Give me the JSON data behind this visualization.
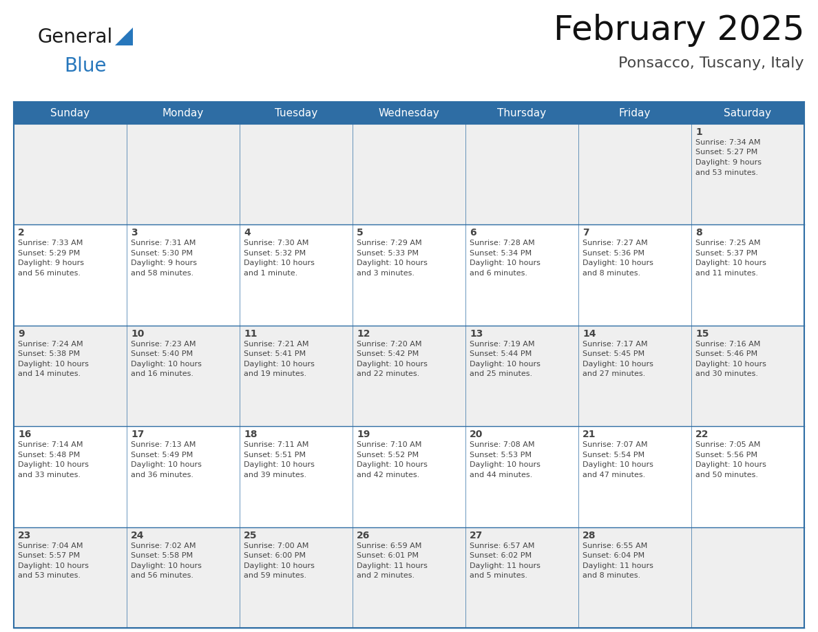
{
  "title": "February 2025",
  "subtitle": "Ponsacco, Tuscany, Italy",
  "days_of_week": [
    "Sunday",
    "Monday",
    "Tuesday",
    "Wednesday",
    "Thursday",
    "Friday",
    "Saturday"
  ],
  "header_bg": "#2E6DA4",
  "header_fg": "#FFFFFF",
  "cell_bg_odd": "#EFEFEF",
  "cell_bg_even": "#FFFFFF",
  "border_color": "#2E6DA4",
  "text_color": "#444444",
  "logo_general_color": "#1a1a1a",
  "logo_blue_color": "#2777BC",
  "calendar_data": [
    [
      {
        "day": null,
        "info": null
      },
      {
        "day": null,
        "info": null
      },
      {
        "day": null,
        "info": null
      },
      {
        "day": null,
        "info": null
      },
      {
        "day": null,
        "info": null
      },
      {
        "day": null,
        "info": null
      },
      {
        "day": 1,
        "info": "Sunrise: 7:34 AM\nSunset: 5:27 PM\nDaylight: 9 hours\nand 53 minutes."
      }
    ],
    [
      {
        "day": 2,
        "info": "Sunrise: 7:33 AM\nSunset: 5:29 PM\nDaylight: 9 hours\nand 56 minutes."
      },
      {
        "day": 3,
        "info": "Sunrise: 7:31 AM\nSunset: 5:30 PM\nDaylight: 9 hours\nand 58 minutes."
      },
      {
        "day": 4,
        "info": "Sunrise: 7:30 AM\nSunset: 5:32 PM\nDaylight: 10 hours\nand 1 minute."
      },
      {
        "day": 5,
        "info": "Sunrise: 7:29 AM\nSunset: 5:33 PM\nDaylight: 10 hours\nand 3 minutes."
      },
      {
        "day": 6,
        "info": "Sunrise: 7:28 AM\nSunset: 5:34 PM\nDaylight: 10 hours\nand 6 minutes."
      },
      {
        "day": 7,
        "info": "Sunrise: 7:27 AM\nSunset: 5:36 PM\nDaylight: 10 hours\nand 8 minutes."
      },
      {
        "day": 8,
        "info": "Sunrise: 7:25 AM\nSunset: 5:37 PM\nDaylight: 10 hours\nand 11 minutes."
      }
    ],
    [
      {
        "day": 9,
        "info": "Sunrise: 7:24 AM\nSunset: 5:38 PM\nDaylight: 10 hours\nand 14 minutes."
      },
      {
        "day": 10,
        "info": "Sunrise: 7:23 AM\nSunset: 5:40 PM\nDaylight: 10 hours\nand 16 minutes."
      },
      {
        "day": 11,
        "info": "Sunrise: 7:21 AM\nSunset: 5:41 PM\nDaylight: 10 hours\nand 19 minutes."
      },
      {
        "day": 12,
        "info": "Sunrise: 7:20 AM\nSunset: 5:42 PM\nDaylight: 10 hours\nand 22 minutes."
      },
      {
        "day": 13,
        "info": "Sunrise: 7:19 AM\nSunset: 5:44 PM\nDaylight: 10 hours\nand 25 minutes."
      },
      {
        "day": 14,
        "info": "Sunrise: 7:17 AM\nSunset: 5:45 PM\nDaylight: 10 hours\nand 27 minutes."
      },
      {
        "day": 15,
        "info": "Sunrise: 7:16 AM\nSunset: 5:46 PM\nDaylight: 10 hours\nand 30 minutes."
      }
    ],
    [
      {
        "day": 16,
        "info": "Sunrise: 7:14 AM\nSunset: 5:48 PM\nDaylight: 10 hours\nand 33 minutes."
      },
      {
        "day": 17,
        "info": "Sunrise: 7:13 AM\nSunset: 5:49 PM\nDaylight: 10 hours\nand 36 minutes."
      },
      {
        "day": 18,
        "info": "Sunrise: 7:11 AM\nSunset: 5:51 PM\nDaylight: 10 hours\nand 39 minutes."
      },
      {
        "day": 19,
        "info": "Sunrise: 7:10 AM\nSunset: 5:52 PM\nDaylight: 10 hours\nand 42 minutes."
      },
      {
        "day": 20,
        "info": "Sunrise: 7:08 AM\nSunset: 5:53 PM\nDaylight: 10 hours\nand 44 minutes."
      },
      {
        "day": 21,
        "info": "Sunrise: 7:07 AM\nSunset: 5:54 PM\nDaylight: 10 hours\nand 47 minutes."
      },
      {
        "day": 22,
        "info": "Sunrise: 7:05 AM\nSunset: 5:56 PM\nDaylight: 10 hours\nand 50 minutes."
      }
    ],
    [
      {
        "day": 23,
        "info": "Sunrise: 7:04 AM\nSunset: 5:57 PM\nDaylight: 10 hours\nand 53 minutes."
      },
      {
        "day": 24,
        "info": "Sunrise: 7:02 AM\nSunset: 5:58 PM\nDaylight: 10 hours\nand 56 minutes."
      },
      {
        "day": 25,
        "info": "Sunrise: 7:00 AM\nSunset: 6:00 PM\nDaylight: 10 hours\nand 59 minutes."
      },
      {
        "day": 26,
        "info": "Sunrise: 6:59 AM\nSunset: 6:01 PM\nDaylight: 11 hours\nand 2 minutes."
      },
      {
        "day": 27,
        "info": "Sunrise: 6:57 AM\nSunset: 6:02 PM\nDaylight: 11 hours\nand 5 minutes."
      },
      {
        "day": 28,
        "info": "Sunrise: 6:55 AM\nSunset: 6:04 PM\nDaylight: 11 hours\nand 8 minutes."
      },
      {
        "day": null,
        "info": null
      }
    ]
  ]
}
